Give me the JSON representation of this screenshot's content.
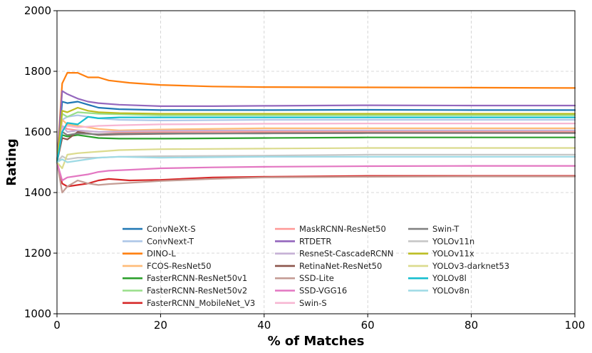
{
  "chart_data": {
    "type": "line",
    "title": "",
    "xlabel": "% of Matches",
    "ylabel": "Rating",
    "xlim": [
      0,
      100
    ],
    "ylim": [
      1000,
      2000
    ],
    "xticks": [
      0,
      20,
      40,
      60,
      80,
      100
    ],
    "yticks": [
      1000,
      1200,
      1400,
      1600,
      1800,
      2000
    ],
    "grid": true,
    "legend_position": "lower-center",
    "legend_columns": 3,
    "series": [
      {
        "name": "ConvNeXt-S",
        "color": "#1f77b4",
        "x": [
          0,
          1,
          2,
          4,
          6,
          8,
          12,
          20,
          40,
          60,
          80,
          100
        ],
        "y": [
          1500,
          1700,
          1695,
          1700,
          1690,
          1680,
          1675,
          1672,
          1672,
          1673,
          1672,
          1672
        ]
      },
      {
        "name": "ConvNext-T",
        "color": "#aec7e8",
        "x": [
          0,
          1,
          2,
          4,
          8,
          12,
          20,
          40,
          60,
          80,
          100
        ],
        "y": [
          1500,
          1640,
          1650,
          1655,
          1645,
          1640,
          1638,
          1640,
          1640,
          1640,
          1640
        ]
      },
      {
        "name": "DINO-L",
        "color": "#ff7f0e",
        "x": [
          0,
          1,
          2,
          4,
          6,
          8,
          10,
          14,
          20,
          30,
          40,
          60,
          80,
          100
        ],
        "y": [
          1500,
          1760,
          1795,
          1795,
          1780,
          1780,
          1770,
          1762,
          1755,
          1750,
          1748,
          1747,
          1746,
          1745
        ]
      },
      {
        "name": "FCOS-ResNet50",
        "color": "#ffbb78",
        "x": [
          0,
          1,
          2,
          4,
          8,
          12,
          20,
          40,
          60,
          80,
          100
        ],
        "y": [
          1500,
          1640,
          1625,
          1620,
          1610,
          1605,
          1608,
          1612,
          1612,
          1612,
          1612
        ]
      },
      {
        "name": "FasterRCNN-ResNet50v1",
        "color": "#2ca02c",
        "x": [
          0,
          1,
          2,
          4,
          8,
          12,
          20,
          40,
          60,
          80,
          100
        ],
        "y": [
          1500,
          1590,
          1585,
          1590,
          1580,
          1578,
          1578,
          1580,
          1582,
          1582,
          1582
        ]
      },
      {
        "name": "FasterRCNN-ResNet50v2",
        "color": "#98df8a",
        "x": [
          0,
          1,
          2,
          4,
          8,
          12,
          20,
          40,
          60,
          80,
          100
        ],
        "y": [
          1500,
          1660,
          1650,
          1665,
          1660,
          1658,
          1655,
          1655,
          1655,
          1655,
          1655
        ]
      },
      {
        "name": "FasterRCNN_MobileNet_V3",
        "color": "#d62728",
        "x": [
          0,
          1,
          2,
          4,
          6,
          8,
          10,
          14,
          20,
          30,
          40,
          60,
          80,
          100
        ],
        "y": [
          1500,
          1430,
          1420,
          1425,
          1430,
          1440,
          1445,
          1440,
          1442,
          1450,
          1452,
          1455,
          1455,
          1455
        ]
      },
      {
        "name": "MaskRCNN-ResNet50",
        "color": "#ff9896",
        "x": [
          0,
          1,
          2,
          4,
          8,
          12,
          20,
          40,
          60,
          80,
          100
        ],
        "y": [
          1500,
          1620,
          1610,
          1605,
          1600,
          1598,
          1600,
          1600,
          1600,
          1600,
          1600
        ]
      },
      {
        "name": "RTDETR",
        "color": "#9467bd",
        "x": [
          0,
          1,
          2,
          4,
          6,
          8,
          12,
          20,
          30,
          40,
          60,
          80,
          100
        ],
        "y": [
          1500,
          1735,
          1725,
          1710,
          1700,
          1695,
          1690,
          1685,
          1685,
          1686,
          1688,
          1687,
          1687
        ]
      },
      {
        "name": "ResneSt-CascadeRCNN",
        "color": "#c5b0d5",
        "x": [
          0,
          1,
          2,
          4,
          8,
          12,
          20,
          40,
          60,
          80,
          100
        ],
        "y": [
          1500,
          1620,
          1600,
          1605,
          1600,
          1602,
          1604,
          1605,
          1605,
          1605,
          1605
        ]
      },
      {
        "name": "RetinaNet-ResNet50",
        "color": "#8c564b",
        "x": [
          0,
          1,
          2,
          4,
          8,
          12,
          20,
          40,
          60,
          80,
          100
        ],
        "y": [
          1500,
          1580,
          1575,
          1600,
          1590,
          1592,
          1594,
          1596,
          1597,
          1597,
          1597
        ]
      },
      {
        "name": "SSD-Lite",
        "color": "#c49c94",
        "x": [
          0,
          1,
          2,
          4,
          6,
          8,
          10,
          14,
          20,
          30,
          40,
          60,
          80,
          100
        ],
        "y": [
          1500,
          1400,
          1420,
          1440,
          1430,
          1425,
          1428,
          1432,
          1438,
          1445,
          1450,
          1452,
          1453,
          1453
        ]
      },
      {
        "name": "SSD-VGG16",
        "color": "#e377c2",
        "x": [
          0,
          1,
          2,
          4,
          6,
          8,
          10,
          14,
          20,
          30,
          40,
          60,
          80,
          100
        ],
        "y": [
          1500,
          1440,
          1450,
          1455,
          1460,
          1468,
          1472,
          1475,
          1480,
          1483,
          1485,
          1487,
          1488,
          1488
        ]
      },
      {
        "name": "Swin-S",
        "color": "#f7b6d2",
        "x": [
          0,
          1,
          2,
          4,
          8,
          12,
          20,
          40,
          60,
          80,
          100
        ],
        "y": [
          1500,
          1610,
          1620,
          1615,
          1620,
          1622,
          1625,
          1627,
          1628,
          1628,
          1628
        ]
      },
      {
        "name": "Swin-T",
        "color": "#7f7f7f",
        "x": [
          0,
          1,
          2,
          4,
          8,
          12,
          20,
          40,
          60,
          80,
          100
        ],
        "y": [
          1500,
          1600,
          1590,
          1595,
          1592,
          1594,
          1595,
          1595,
          1596,
          1596,
          1596
        ]
      },
      {
        "name": "YOLOv11n",
        "color": "#c7c7c7",
        "x": [
          0,
          1,
          2,
          4,
          8,
          12,
          20,
          40,
          60,
          80,
          100
        ],
        "y": [
          1500,
          1520,
          1510,
          1515,
          1515,
          1518,
          1520,
          1522,
          1525,
          1525,
          1525
        ]
      },
      {
        "name": "YOLOv11x",
        "color": "#bcbd22",
        "x": [
          0,
          1,
          2,
          4,
          6,
          8,
          12,
          20,
          40,
          60,
          80,
          100
        ],
        "y": [
          1500,
          1670,
          1665,
          1680,
          1670,
          1665,
          1662,
          1660,
          1660,
          1660,
          1660,
          1660
        ]
      },
      {
        "name": "YOLOv3-darknet53",
        "color": "#dbdb8d",
        "x": [
          0,
          1,
          2,
          4,
          8,
          12,
          20,
          40,
          60,
          80,
          100
        ],
        "y": [
          1500,
          1480,
          1525,
          1530,
          1535,
          1540,
          1543,
          1545,
          1547,
          1547,
          1547
        ]
      },
      {
        "name": "YOLOv8l",
        "color": "#17becf",
        "x": [
          0,
          1,
          2,
          4,
          6,
          8,
          12,
          20,
          40,
          60,
          80,
          100
        ],
        "y": [
          1500,
          1600,
          1630,
          1625,
          1650,
          1645,
          1648,
          1648,
          1648,
          1648,
          1648,
          1648
        ]
      },
      {
        "name": "YOLOv8n",
        "color": "#9edae5",
        "x": [
          0,
          1,
          2,
          4,
          8,
          12,
          20,
          40,
          60,
          80,
          100
        ],
        "y": [
          1500,
          1510,
          1500,
          1505,
          1515,
          1518,
          1515,
          1518,
          1518,
          1518,
          1518
        ]
      }
    ]
  }
}
